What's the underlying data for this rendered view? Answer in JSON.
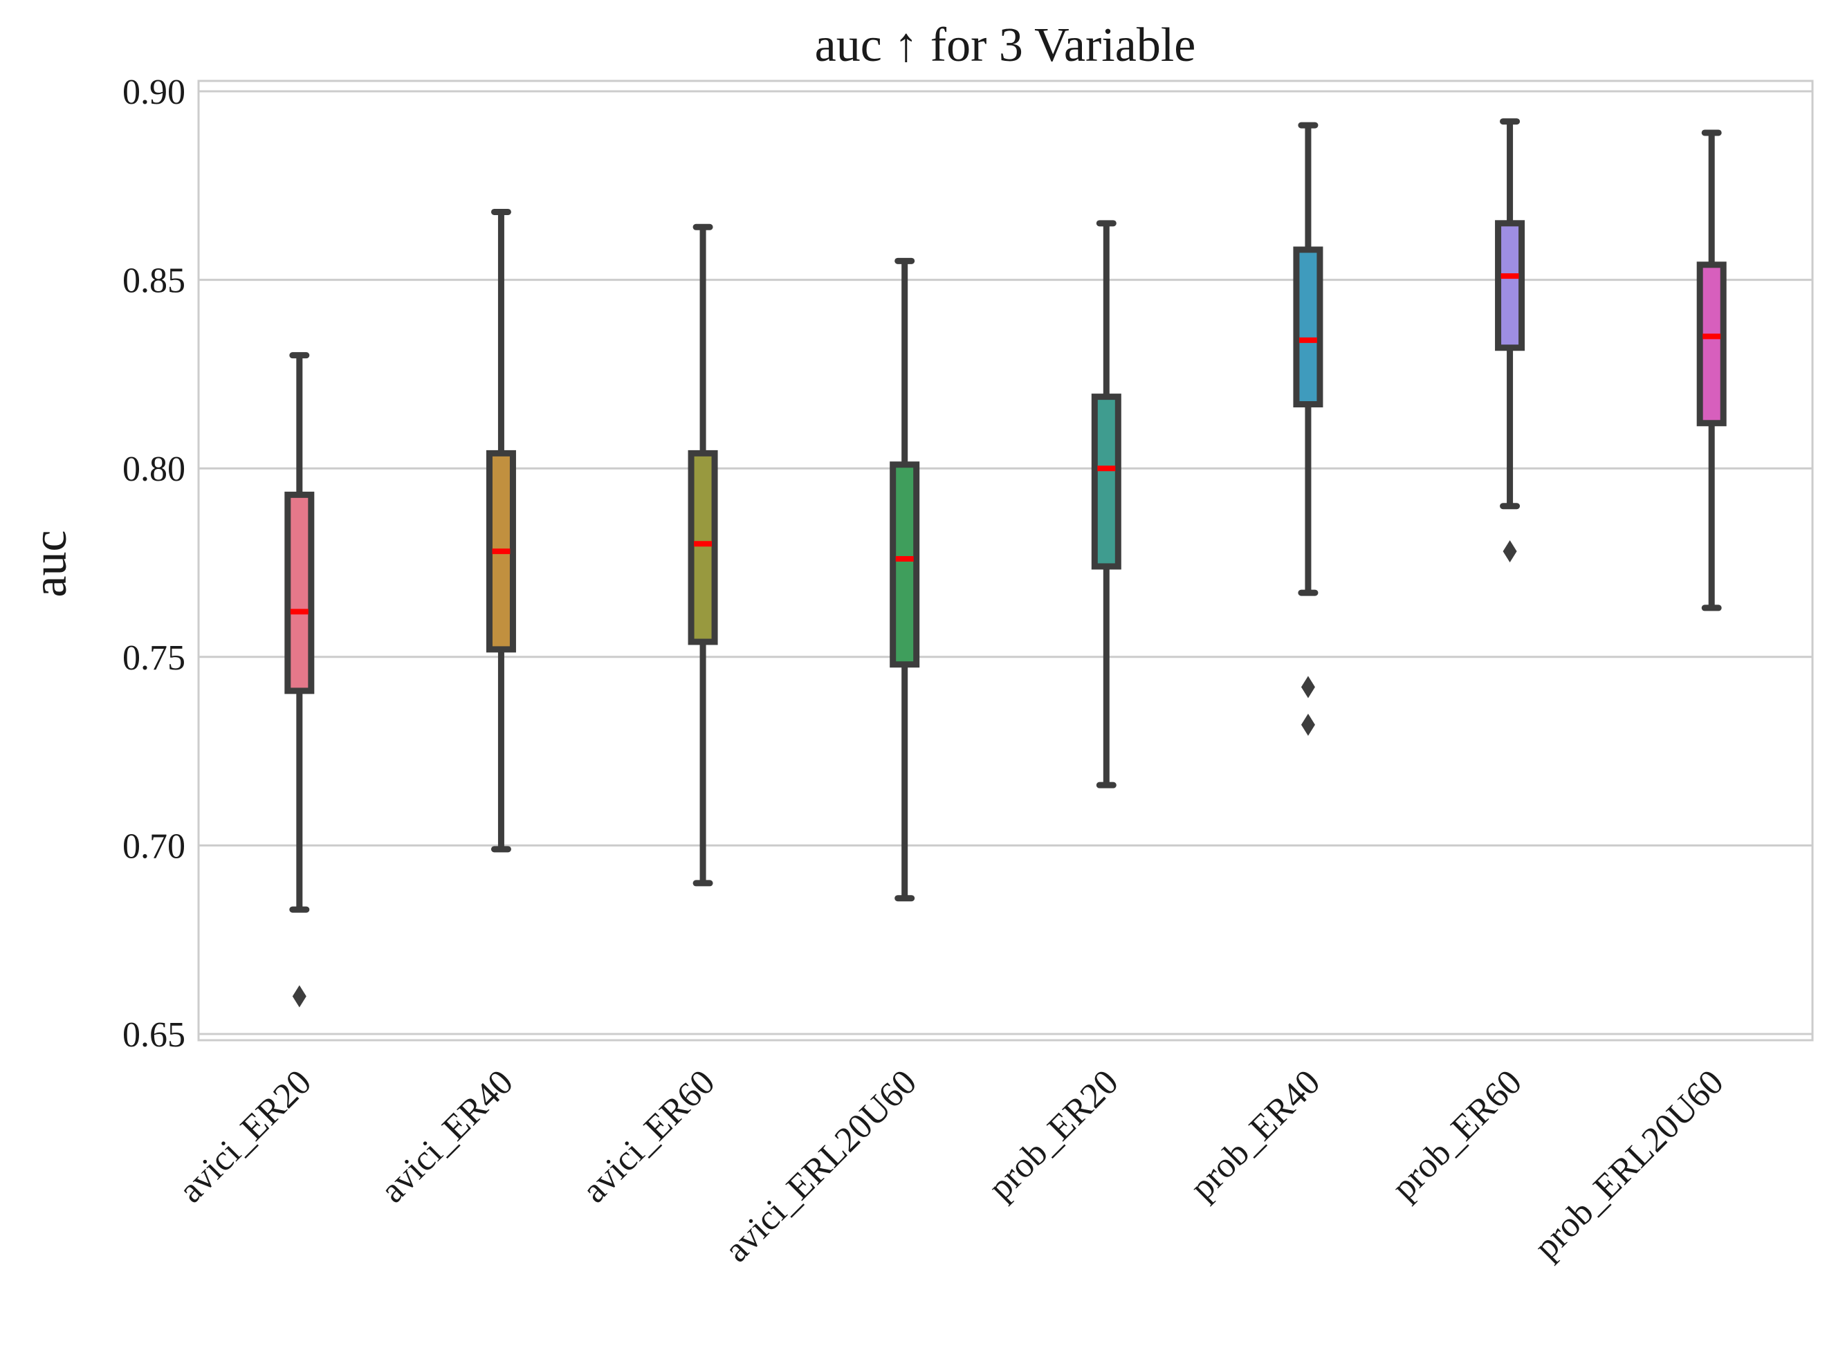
{
  "chart_data": {
    "type": "box",
    "title": "auc ↑ for 3 Variable",
    "xlabel": "",
    "ylabel": "auc",
    "ylim": [
      0.648,
      0.903
    ],
    "yticks": [
      0.65,
      0.7,
      0.75,
      0.8,
      0.85,
      0.9
    ],
    "ytick_labels": [
      "0.65",
      "0.70",
      "0.75",
      "0.80",
      "0.85",
      "0.90"
    ],
    "grid": "horizontal",
    "median_color": "#ff0000",
    "edge_color": "#3d3d3d",
    "categories": [
      "avici_ER20",
      "avici_ER40",
      "avici_ER60",
      "avici_ERL20U60",
      "prob_ER20",
      "prob_ER40",
      "prob_ER60",
      "prob_ERL20U60"
    ],
    "boxes": [
      {
        "label": "avici_ER20",
        "color": "#e5788a",
        "whisker_low": 0.683,
        "q1": 0.741,
        "median": 0.762,
        "q3": 0.793,
        "whisker_high": 0.83,
        "outliers": [
          0.66
        ]
      },
      {
        "label": "avici_ER40",
        "color": "#c1903f",
        "whisker_low": 0.699,
        "q1": 0.752,
        "median": 0.778,
        "q3": 0.804,
        "whisker_high": 0.868,
        "outliers": []
      },
      {
        "label": "avici_ER60",
        "color": "#98993f",
        "whisker_low": 0.69,
        "q1": 0.754,
        "median": 0.78,
        "q3": 0.804,
        "whisker_high": 0.864,
        "outliers": []
      },
      {
        "label": "avici_ERL20U60",
        "color": "#3f9e5c",
        "whisker_low": 0.686,
        "q1": 0.748,
        "median": 0.776,
        "q3": 0.801,
        "whisker_high": 0.855,
        "outliers": []
      },
      {
        "label": "prob_ER20",
        "color": "#3f9c8f",
        "whisker_low": 0.716,
        "q1": 0.774,
        "median": 0.8,
        "q3": 0.819,
        "whisker_high": 0.865,
        "outliers": []
      },
      {
        "label": "prob_ER40",
        "color": "#3f9bbd",
        "whisker_low": 0.767,
        "q1": 0.817,
        "median": 0.834,
        "q3": 0.858,
        "whisker_high": 0.891,
        "outliers": [
          0.742,
          0.732
        ]
      },
      {
        "label": "prob_ER60",
        "color": "#9e8ee3",
        "whisker_low": 0.79,
        "q1": 0.832,
        "median": 0.851,
        "q3": 0.865,
        "whisker_high": 0.892,
        "outliers": [
          0.778
        ]
      },
      {
        "label": "prob_ERL20U60",
        "color": "#d75fbd",
        "whisker_low": 0.763,
        "q1": 0.812,
        "median": 0.835,
        "q3": 0.854,
        "whisker_high": 0.889,
        "outliers": []
      }
    ]
  }
}
